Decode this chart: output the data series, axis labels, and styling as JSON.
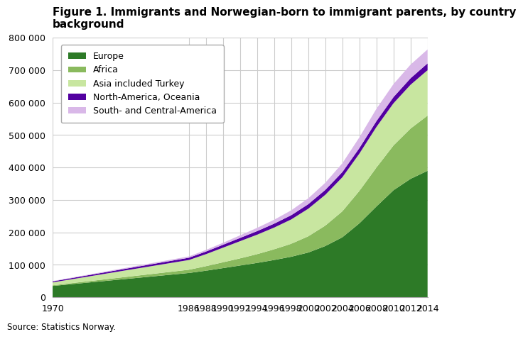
{
  "title_line1": "Figure 1. Immigrants and Norwegian-born to immigrant parents, by country",
  "title_line2": "background",
  "source": "Source: Statistics Norway.",
  "years": [
    1970,
    1986,
    1988,
    1990,
    1992,
    1994,
    1996,
    1998,
    2000,
    2002,
    2004,
    2006,
    2008,
    2010,
    2012,
    2014
  ],
  "series": {
    "Europe": [
      35000,
      75000,
      82000,
      90000,
      98000,
      106000,
      115000,
      125000,
      138000,
      158000,
      185000,
      228000,
      280000,
      330000,
      365000,
      390000
    ],
    "Africa": [
      2000,
      10000,
      14000,
      18000,
      22000,
      27000,
      33000,
      40000,
      50000,
      63000,
      80000,
      100000,
      120000,
      138000,
      155000,
      170000
    ],
    "Asia included Turkey": [
      9000,
      30000,
      37000,
      45000,
      53000,
      60000,
      67000,
      75000,
      85000,
      95000,
      105000,
      115000,
      125000,
      130000,
      135000,
      140000
    ],
    "North-America, Oceania": [
      3000,
      7000,
      8000,
      9000,
      10000,
      11000,
      12000,
      13000,
      14000,
      15000,
      16000,
      17000,
      18000,
      19000,
      20000,
      21000
    ],
    "South- and Central-America": [
      1000,
      4000,
      5000,
      6000,
      8000,
      10000,
      12000,
      15000,
      18000,
      22000,
      27000,
      33000,
      38000,
      40000,
      42000,
      43000
    ]
  },
  "colors": {
    "Europe": "#2d7a27",
    "Africa": "#8aba5e",
    "Asia included Turkey": "#c8e6a0",
    "North-America, Oceania": "#5200a0",
    "South- and Central-America": "#d9b8e8"
  },
  "ylim": [
    0,
    800000
  ],
  "yticks": [
    0,
    100000,
    200000,
    300000,
    400000,
    500000,
    600000,
    700000,
    800000
  ],
  "background_color": "#ffffff",
  "grid_color": "#cccccc",
  "title_fontsize": 11,
  "legend_fontsize": 9,
  "tick_fontsize": 9
}
